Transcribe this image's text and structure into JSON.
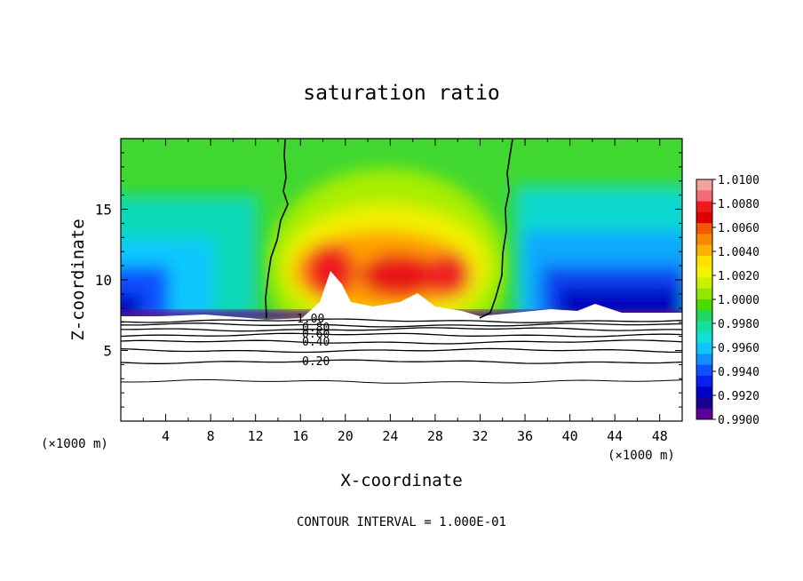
{
  "chart_data": {
    "type": "heatmap",
    "title": "saturation ratio",
    "xlabel": "X-coordinate",
    "ylabel": "Z-coordinate",
    "x_unit_left": "(×1000 m)",
    "x_unit_right": "(×1000 m)",
    "footer": "CONTOUR INTERVAL = 1.000E-01",
    "xlim": [
      0,
      50
    ],
    "ylim": [
      0,
      20
    ],
    "xticks": [
      4,
      8,
      12,
      16,
      20,
      24,
      28,
      32,
      36,
      40,
      44,
      48
    ],
    "yticks": [
      5,
      10,
      15
    ],
    "colorbar": {
      "labels": [
        "1.0100",
        "1.0080",
        "1.0060",
        "1.0040",
        "1.0020",
        "1.0000",
        "0.9980",
        "0.9960",
        "0.9940",
        "0.9920",
        "0.9900"
      ],
      "colors": [
        "#f5a0a0",
        "#f36a78",
        "#ee1a1a",
        "#e00000",
        "#f25a00",
        "#f88800",
        "#ffb000",
        "#ffe000",
        "#f4f200",
        "#c8f000",
        "#90e800",
        "#48dc00",
        "#20d860",
        "#14e0a0",
        "#10e0d8",
        "#10c4ff",
        "#1090ff",
        "#1050ff",
        "#0a20f0",
        "#0000c8",
        "#1a0090",
        "#60009a"
      ]
    },
    "contour_labels": [
      "1.00",
      "0.80",
      "0.60",
      "0.40",
      "0.20"
    ],
    "contour_levels_z": [
      7.1,
      6.8,
      6.5,
      6.1,
      5.6,
      5.0,
      4.2,
      2.8
    ],
    "boundary_x_left": [
      13.0,
      15.0
    ],
    "boundary_x_right": [
      31.5,
      35.0
    ],
    "domain_top_z": 20
  }
}
